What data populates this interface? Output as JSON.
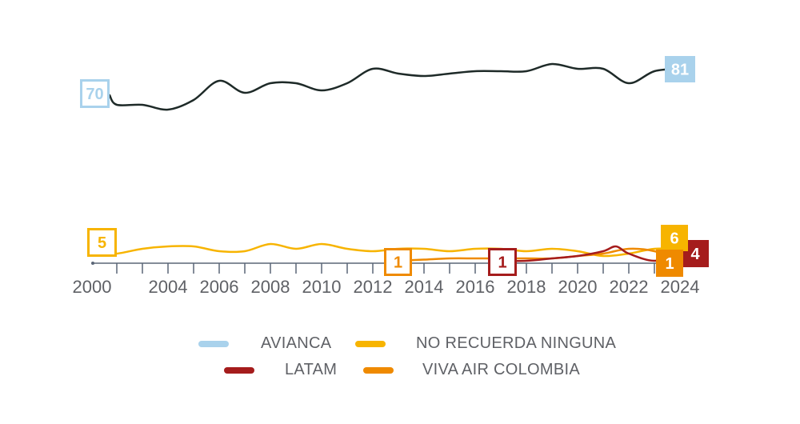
{
  "chart_data": {
    "type": "line",
    "title": "",
    "xlabel": "",
    "ylabel": "",
    "x_ticks": [
      "2000",
      "2004",
      "2006",
      "2008",
      "2010",
      "2012",
      "2014",
      "2016",
      "2018",
      "2020",
      "2022",
      "2024"
    ],
    "ylim": [
      0,
      85
    ],
    "grid": false,
    "legend_position": "bottom",
    "series": [
      {
        "name": "AVIANCA",
        "color": "#a9d2ec",
        "line_color": "#1e2a28",
        "start_year": 2000,
        "start_label": "70",
        "end_year": 2024,
        "end_label": "81",
        "points": [
          [
            2000,
            70
          ],
          [
            2002,
            66
          ],
          [
            2003,
            66
          ],
          [
            2004,
            64
          ],
          [
            2005,
            68
          ],
          [
            2006,
            76
          ],
          [
            2007,
            71
          ],
          [
            2008,
            75
          ],
          [
            2009,
            75
          ],
          [
            2010,
            72
          ],
          [
            2011,
            75
          ],
          [
            2012,
            81
          ],
          [
            2013,
            79
          ],
          [
            2014,
            78
          ],
          [
            2015,
            79
          ],
          [
            2016,
            80
          ],
          [
            2017,
            80
          ],
          [
            2018,
            80
          ],
          [
            2019,
            83
          ],
          [
            2020,
            81
          ],
          [
            2021,
            81
          ],
          [
            2022,
            75
          ],
          [
            2023,
            80
          ],
          [
            2024,
            81
          ]
        ]
      },
      {
        "name": "NO RECUERDA NINGUNA",
        "color": "#f7b400",
        "start_year": 2000,
        "start_label": "5",
        "end_year": 2024,
        "end_label": "6",
        "points": [
          [
            2000,
            5
          ],
          [
            2002,
            4
          ],
          [
            2003,
            6
          ],
          [
            2004,
            7
          ],
          [
            2005,
            7
          ],
          [
            2006,
            5
          ],
          [
            2007,
            5
          ],
          [
            2008,
            8
          ],
          [
            2009,
            6
          ],
          [
            2010,
            8
          ],
          [
            2011,
            6
          ],
          [
            2012,
            5
          ],
          [
            2013,
            6
          ],
          [
            2014,
            6
          ],
          [
            2015,
            5
          ],
          [
            2016,
            6
          ],
          [
            2017,
            6
          ],
          [
            2018,
            5
          ],
          [
            2019,
            6
          ],
          [
            2020,
            5
          ],
          [
            2021,
            3
          ],
          [
            2022,
            4
          ],
          [
            2023,
            6
          ],
          [
            2024,
            6
          ]
        ]
      },
      {
        "name": "LATAM",
        "color": "#a51c1c",
        "start_year": 2017,
        "start_label": "1",
        "end_year": 2024,
        "end_label": "4",
        "points": [
          [
            2017,
            1
          ],
          [
            2018,
            1
          ],
          [
            2019,
            2
          ],
          [
            2020,
            3
          ],
          [
            2021,
            5
          ],
          [
            2021.5,
            7
          ],
          [
            2022,
            4
          ],
          [
            2023,
            1
          ],
          [
            2024,
            4
          ]
        ]
      },
      {
        "name": "VIVA AIR COLOMBIA",
        "color": "#ef8a00",
        "start_year": 2013,
        "start_label": "1",
        "end_year": 2024,
        "end_label": "1",
        "points": [
          [
            2013,
            1
          ],
          [
            2014,
            1.5
          ],
          [
            2015,
            2
          ],
          [
            2016,
            2
          ],
          [
            2017,
            2
          ],
          [
            2018,
            2
          ],
          [
            2019,
            2
          ],
          [
            2020,
            3
          ],
          [
            2021,
            4
          ],
          [
            2022,
            6
          ],
          [
            2023,
            5
          ],
          [
            2024,
            1
          ]
        ]
      }
    ]
  },
  "legend": {
    "items": [
      {
        "label": "AVIANCA",
        "color": "#a9d2ec"
      },
      {
        "label": "NO RECUERDA NINGUNA",
        "color": "#f7b400"
      },
      {
        "label": "LATAM",
        "color": "#a51c1c"
      },
      {
        "label": "VIVA AIR COLOMBIA",
        "color": "#ef8a00"
      }
    ]
  }
}
